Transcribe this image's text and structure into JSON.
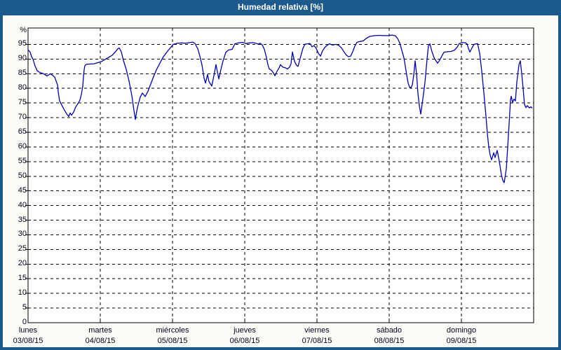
{
  "window": {
    "title": "Humedad relativa [%]"
  },
  "colors": {
    "titlebar_and_border": "#1c5a8e",
    "title_text": "#ffffff",
    "content_background": "#fdfdf7",
    "plot_background": "#ffffff",
    "series_line": "#0000b4",
    "grid_and_axis": "#000000",
    "axis_text": "#000020"
  },
  "chart_data": {
    "type": "line",
    "title": "Humedad relativa [%]",
    "ylabel": "%",
    "unit_label": "%",
    "ylim": [
      0,
      100
    ],
    "ytick_step": 5,
    "ytick_labels": [
      "95",
      "90",
      "85",
      "80",
      "75",
      "70",
      "65",
      "60",
      "55",
      "50",
      "45",
      "40",
      "35",
      "30",
      "25",
      "20",
      "15",
      "10",
      "5",
      "0"
    ],
    "grid": "dashed",
    "legend_position": "none",
    "x_days": [
      {
        "day": "lunes",
        "date": "03/08/15"
      },
      {
        "day": "martes",
        "date": "04/08/15"
      },
      {
        "day": "miércoles",
        "date": "05/08/15"
      },
      {
        "day": "jueves",
        "date": "06/08/15"
      },
      {
        "day": "viernes",
        "date": "07/08/15"
      },
      {
        "day": "sábado",
        "date": "08/08/15"
      },
      {
        "day": "domingo",
        "date": "09/08/15"
      }
    ],
    "series": [
      {
        "name": "Humedad relativa",
        "color": "#0000b4",
        "x_unit": "days_from_start",
        "points": [
          [
            0.0,
            93.1
          ],
          [
            0.029,
            92.4
          ],
          [
            0.049,
            90.8
          ],
          [
            0.068,
            90.0
          ],
          [
            0.078,
            89.2
          ],
          [
            0.097,
            87.6
          ],
          [
            0.117,
            86.6
          ],
          [
            0.126,
            86.0
          ],
          [
            0.165,
            85.4
          ],
          [
            0.214,
            85.0
          ],
          [
            0.262,
            84.2
          ],
          [
            0.311,
            85.0
          ],
          [
            0.369,
            83.8
          ],
          [
            0.408,
            81.2
          ],
          [
            0.417,
            78.8
          ],
          [
            0.437,
            75.7
          ],
          [
            0.466,
            74.3
          ],
          [
            0.505,
            72.5
          ],
          [
            0.534,
            71.3
          ],
          [
            0.563,
            70.4
          ],
          [
            0.583,
            71.6
          ],
          [
            0.602,
            70.8
          ],
          [
            0.631,
            71.9
          ],
          [
            0.66,
            73.7
          ],
          [
            0.699,
            75.1
          ],
          [
            0.718,
            76.0
          ],
          [
            0.738,
            77.9
          ],
          [
            0.757,
            80.7
          ],
          [
            0.767,
            83.9
          ],
          [
            0.777,
            86.3
          ],
          [
            0.786,
            87.7
          ],
          [
            0.806,
            88.2
          ],
          [
            0.854,
            88.3
          ],
          [
            0.913,
            88.4
          ],
          [
            0.971,
            88.8
          ],
          [
            1.019,
            89.2
          ],
          [
            1.068,
            89.9
          ],
          [
            1.117,
            90.6
          ],
          [
            1.165,
            91.3
          ],
          [
            1.214,
            92.6
          ],
          [
            1.243,
            93.5
          ],
          [
            1.262,
            93.8
          ],
          [
            1.291,
            92.5
          ],
          [
            1.32,
            89.5
          ],
          [
            1.359,
            86.5
          ],
          [
            1.398,
            82.5
          ],
          [
            1.437,
            77.5
          ],
          [
            1.466,
            72.5
          ],
          [
            1.485,
            69.4
          ],
          [
            1.515,
            73.5
          ],
          [
            1.553,
            77.0
          ],
          [
            1.583,
            78.4
          ],
          [
            1.621,
            77.2
          ],
          [
            1.66,
            79.0
          ],
          [
            1.699,
            81.5
          ],
          [
            1.738,
            84.0
          ],
          [
            1.777,
            86.3
          ],
          [
            1.825,
            88.6
          ],
          [
            1.874,
            90.8
          ],
          [
            1.942,
            93.0
          ],
          [
            2.01,
            95.0
          ],
          [
            2.068,
            95.4
          ],
          [
            2.126,
            95.5
          ],
          [
            2.184,
            95.4
          ],
          [
            2.233,
            95.6
          ],
          [
            2.282,
            95.8
          ],
          [
            2.311,
            95.3
          ],
          [
            2.35,
            93.5
          ],
          [
            2.379,
            91.0
          ],
          [
            2.408,
            88.0
          ],
          [
            2.437,
            83.5
          ],
          [
            2.456,
            81.8
          ],
          [
            2.485,
            84.7
          ],
          [
            2.505,
            82.3
          ],
          [
            2.544,
            80.8
          ],
          [
            2.583,
            85.5
          ],
          [
            2.602,
            88.1
          ],
          [
            2.641,
            83.2
          ],
          [
            2.67,
            86.4
          ],
          [
            2.699,
            89.3
          ],
          [
            2.738,
            92.3
          ],
          [
            2.777,
            93.1
          ],
          [
            2.825,
            93.3
          ],
          [
            2.864,
            95.2
          ],
          [
            2.913,
            95.5
          ],
          [
            2.971,
            95.7
          ],
          [
            3.019,
            95.3
          ],
          [
            3.068,
            95.5
          ],
          [
            3.117,
            95.6
          ],
          [
            3.155,
            95.4
          ],
          [
            3.184,
            95.1
          ],
          [
            3.214,
            95.4
          ],
          [
            3.243,
            94.8
          ],
          [
            3.272,
            93.3
          ],
          [
            3.301,
            90.5
          ],
          [
            3.32,
            88.1
          ],
          [
            3.34,
            86.6
          ],
          [
            3.369,
            86.2
          ],
          [
            3.398,
            85.2
          ],
          [
            3.417,
            84.3
          ],
          [
            3.447,
            85.8
          ],
          [
            3.476,
            87.0
          ],
          [
            3.495,
            88.1
          ],
          [
            3.524,
            87.3
          ],
          [
            3.563,
            87.0
          ],
          [
            3.592,
            86.6
          ],
          [
            3.621,
            87.3
          ],
          [
            3.641,
            88.4
          ],
          [
            3.66,
            92.4
          ],
          [
            3.689,
            89.2
          ],
          [
            3.718,
            87.8
          ],
          [
            3.738,
            87.5
          ],
          [
            3.767,
            90.2
          ],
          [
            3.806,
            93.7
          ],
          [
            3.835,
            95.1
          ],
          [
            3.874,
            95.2
          ],
          [
            3.903,
            95.3
          ],
          [
            3.932,
            94.2
          ],
          [
            3.961,
            94.6
          ],
          [
            3.99,
            93.6
          ],
          [
            4.019,
            92.0
          ],
          [
            4.049,
            91.0
          ],
          [
            4.078,
            92.8
          ],
          [
            4.107,
            93.9
          ],
          [
            4.136,
            94.6
          ],
          [
            4.175,
            95.2
          ],
          [
            4.214,
            94.8
          ],
          [
            4.262,
            95.0
          ],
          [
            4.301,
            94.7
          ],
          [
            4.34,
            93.8
          ],
          [
            4.379,
            92.3
          ],
          [
            4.408,
            91.3
          ],
          [
            4.437,
            90.8
          ],
          [
            4.466,
            91.0
          ],
          [
            4.495,
            92.5
          ],
          [
            4.524,
            94.4
          ],
          [
            4.553,
            95.7
          ],
          [
            4.592,
            96.0
          ],
          [
            4.641,
            96.2
          ],
          [
            4.68,
            97.0
          ],
          [
            4.728,
            97.7
          ],
          [
            4.796,
            98.0
          ],
          [
            4.864,
            98.1
          ],
          [
            4.932,
            98.0
          ],
          [
            4.99,
            98.0
          ],
          [
            5.039,
            98.2
          ],
          [
            5.087,
            97.9
          ],
          [
            5.117,
            97.0
          ],
          [
            5.146,
            95.5
          ],
          [
            5.175,
            93.0
          ],
          [
            5.204,
            90.4
          ],
          [
            5.223,
            87.5
          ],
          [
            5.243,
            84.5
          ],
          [
            5.262,
            81.8
          ],
          [
            5.282,
            80.4
          ],
          [
            5.301,
            80.2
          ],
          [
            5.32,
            81.2
          ],
          [
            5.34,
            84.5
          ],
          [
            5.359,
            89.4
          ],
          [
            5.379,
            85.0
          ],
          [
            5.398,
            78.3
          ],
          [
            5.417,
            74.0
          ],
          [
            5.437,
            71.2
          ],
          [
            5.466,
            76.4
          ],
          [
            5.495,
            82.0
          ],
          [
            5.524,
            90.0
          ],
          [
            5.544,
            94.6
          ],
          [
            5.563,
            95.2
          ],
          [
            5.592,
            92.5
          ],
          [
            5.621,
            90.5
          ],
          [
            5.65,
            89.3
          ],
          [
            5.67,
            88.6
          ],
          [
            5.699,
            89.6
          ],
          [
            5.728,
            91.0
          ],
          [
            5.757,
            92.3
          ],
          [
            5.806,
            92.5
          ],
          [
            5.854,
            92.6
          ],
          [
            5.903,
            93.0
          ],
          [
            5.942,
            94.1
          ],
          [
            5.971,
            95.3
          ],
          [
            6.01,
            95.6
          ],
          [
            6.049,
            95.6
          ],
          [
            6.078,
            95.2
          ],
          [
            6.097,
            93.6
          ],
          [
            6.117,
            92.4
          ],
          [
            6.146,
            93.8
          ],
          [
            6.175,
            95.0
          ],
          [
            6.204,
            95.2
          ],
          [
            6.223,
            95.3
          ],
          [
            6.252,
            92.0
          ],
          [
            6.281,
            86.0
          ],
          [
            6.311,
            78.5
          ],
          [
            6.34,
            70.5
          ],
          [
            6.359,
            64.5
          ],
          [
            6.379,
            60.0
          ],
          [
            6.398,
            57.2
          ],
          [
            6.417,
            55.6
          ],
          [
            6.447,
            58.0
          ],
          [
            6.466,
            56.4
          ],
          [
            6.495,
            58.8
          ],
          [
            6.524,
            55.1
          ],
          [
            6.553,
            50.5
          ],
          [
            6.573,
            48.6
          ],
          [
            6.592,
            47.8
          ],
          [
            6.621,
            52.5
          ],
          [
            6.641,
            60.0
          ],
          [
            6.66,
            68.0
          ],
          [
            6.68,
            76.0
          ],
          [
            6.689,
            77.3
          ],
          [
            6.709,
            75.2
          ],
          [
            6.728,
            76.3
          ],
          [
            6.748,
            75.7
          ],
          [
            6.767,
            82.0
          ],
          [
            6.796,
            88.0
          ],
          [
            6.816,
            89.4
          ],
          [
            6.835,
            85.0
          ],
          [
            6.854,
            80.0
          ],
          [
            6.873,
            74.5
          ],
          [
            6.893,
            73.4
          ],
          [
            6.912,
            74.1
          ],
          [
            6.941,
            73.3
          ],
          [
            6.961,
            73.7
          ],
          [
            6.981,
            73.2
          ]
        ]
      }
    ]
  }
}
